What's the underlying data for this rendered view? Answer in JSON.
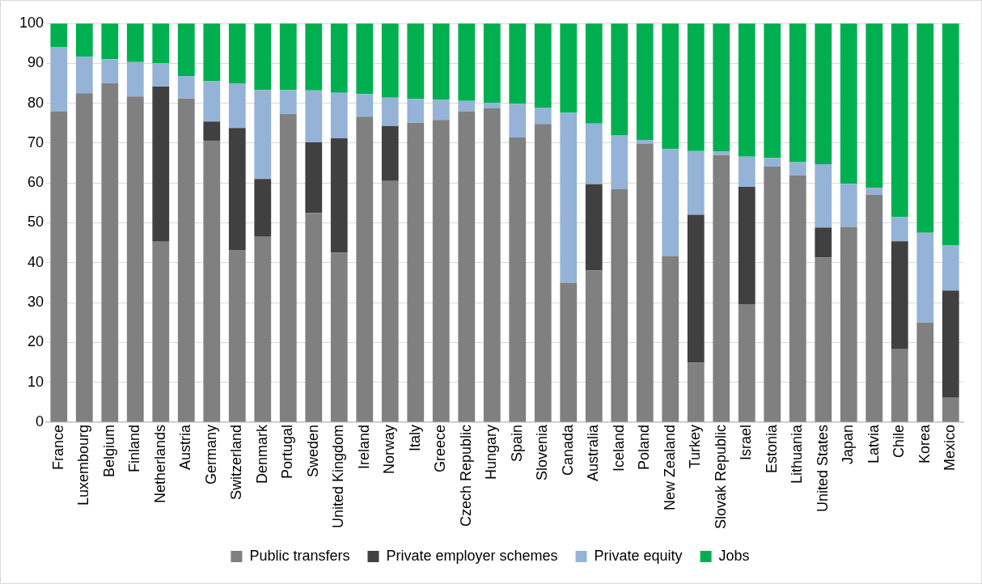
{
  "chart_data": {
    "type": "bar",
    "stacked": true,
    "categories": [
      "France",
      "Luxembourg",
      "Belgium",
      "Finland",
      "Netherlands",
      "Austria",
      "Germany",
      "Switzerland",
      "Denmark",
      "Portugal",
      "Sweden",
      "United Kingdom",
      "Ireland",
      "Norway",
      "Italy",
      "Greece",
      "Czech Republic",
      "Hungary",
      "Spain",
      "Slovenia",
      "Canada",
      "Australia",
      "Iceland",
      "Poland",
      "New Zealand",
      "Turkey",
      "Slovak Republic",
      "Israel",
      "Estonia",
      "Lithuania",
      "United States",
      "Japan",
      "Latvia",
      "Chile",
      "Korea",
      "Mexico"
    ],
    "series": [
      {
        "name": "Public transfers",
        "color": "#808080",
        "values": [
          78,
          82.5,
          85,
          81.7,
          45.3,
          81.2,
          70.6,
          43.2,
          46.5,
          77.3,
          52.5,
          42.5,
          76.6,
          60.5,
          75.1,
          75.8,
          78,
          78.7,
          71.4,
          74.8,
          35,
          38,
          58.4,
          69.8,
          41.7,
          14.9,
          67,
          29.6,
          64.1,
          61.9,
          41.3,
          49,
          57,
          18.3,
          25,
          6.1
        ]
      },
      {
        "name": "Private employer schemes",
        "color": "#404040",
        "values": [
          0,
          0,
          0,
          0,
          38.9,
          0,
          4.8,
          30.6,
          14.5,
          0,
          17.7,
          28.7,
          0,
          13.8,
          0,
          0,
          0,
          0,
          0,
          0,
          0,
          21.7,
          0,
          0,
          0,
          37.1,
          0,
          29.4,
          0,
          0,
          7.5,
          0,
          0,
          27.1,
          0,
          26.9
        ]
      },
      {
        "name": "Private equity",
        "color": "#95b3d7",
        "values": [
          16,
          9.2,
          6,
          8.6,
          5.8,
          5.6,
          10.1,
          11.2,
          22.3,
          6,
          13,
          11.4,
          5.7,
          7.1,
          6,
          5.1,
          2.6,
          1.4,
          8.4,
          4.1,
          42.6,
          15.2,
          13.6,
          1,
          26.8,
          16,
          0.9,
          7.6,
          2.2,
          3.4,
          15.9,
          10.8,
          1.8,
          6,
          22.5,
          11.3
        ]
      },
      {
        "name": "Jobs",
        "color": "#00b050",
        "values": [
          6,
          8.3,
          9,
          9.7,
          10,
          13.2,
          14.5,
          15,
          16.7,
          16.7,
          16.8,
          17.4,
          17.7,
          18.6,
          18.9,
          19.1,
          19.4,
          19.9,
          20.2,
          21.1,
          22.4,
          25.1,
          28,
          29.2,
          31.5,
          32,
          32.1,
          33.4,
          33.7,
          34.7,
          35.3,
          40.2,
          41.2,
          48.6,
          52.5,
          55.7
        ]
      }
    ],
    "ylim": [
      0,
      100
    ],
    "yticks": [
      0,
      10,
      20,
      30,
      40,
      50,
      60,
      70,
      80,
      90,
      100
    ],
    "grid": "y",
    "legend": "bottom"
  }
}
